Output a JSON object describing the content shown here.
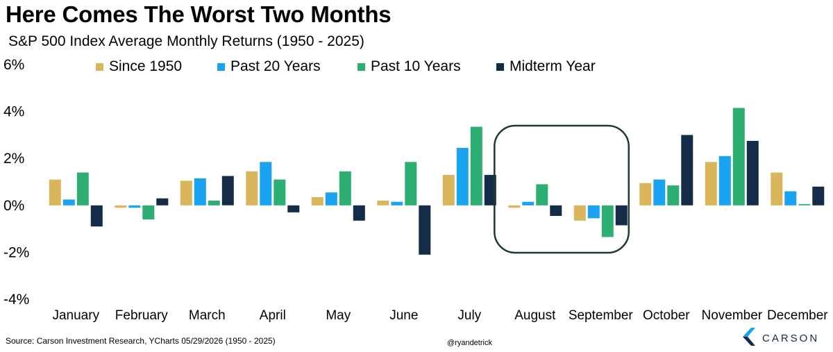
{
  "title": "Here Comes The Worst Two Months",
  "subtitle": "S&P 500 Index Average Monthly Returns (1950 - 2025)",
  "source": "Source: Carson Investment Research, YCharts 05/29/2026 (1950 - 2025)",
  "handle": "@ryandetrick",
  "brand": {
    "name": "CARSON",
    "icon": "carson-logo-icon"
  },
  "colors": {
    "since_1950": "#D9B65C",
    "past_20": "#1AA3F0",
    "past_10": "#2DAE72",
    "midterm": "#142C48",
    "highlight_box": "#1E3A2A"
  },
  "chart_data": {
    "type": "bar",
    "title": "Here Comes The Worst Two Months",
    "subtitle": "S&P 500 Index Average Monthly Returns (1950 - 2025)",
    "categories": [
      "January",
      "February",
      "March",
      "April",
      "May",
      "June",
      "July",
      "August",
      "September",
      "October",
      "November",
      "December"
    ],
    "series": [
      {
        "name": "Since 1950",
        "color": "#D9B65C",
        "values": [
          1.1,
          -0.1,
          1.05,
          1.45,
          0.35,
          0.2,
          1.3,
          -0.1,
          -0.65,
          0.95,
          1.85,
          1.4
        ]
      },
      {
        "name": "Past 20 Years",
        "color": "#1AA3F0",
        "values": [
          0.25,
          -0.1,
          1.15,
          1.85,
          0.55,
          0.15,
          2.45,
          0.15,
          -0.55,
          1.1,
          2.1,
          0.6
        ]
      },
      {
        "name": "Past 10 Years",
        "color": "#2DAE72",
        "values": [
          1.4,
          -0.6,
          0.2,
          1.1,
          1.45,
          1.85,
          3.35,
          0.9,
          -1.35,
          0.85,
          4.15,
          0.05
        ]
      },
      {
        "name": "Midterm Year",
        "color": "#142C48",
        "values": [
          -0.9,
          0.3,
          1.25,
          -0.3,
          -0.65,
          -2.1,
          1.3,
          -0.45,
          -0.85,
          3.0,
          2.75,
          0.8
        ]
      }
    ],
    "yticks": [
      "6%",
      "4%",
      "2%",
      "0%",
      "-2%",
      "-4%"
    ],
    "ylim": [
      -4,
      6
    ],
    "xlabel": "",
    "ylabel": "",
    "grid": false,
    "legend": "top",
    "highlight": {
      "categories": [
        "August",
        "September"
      ]
    }
  }
}
